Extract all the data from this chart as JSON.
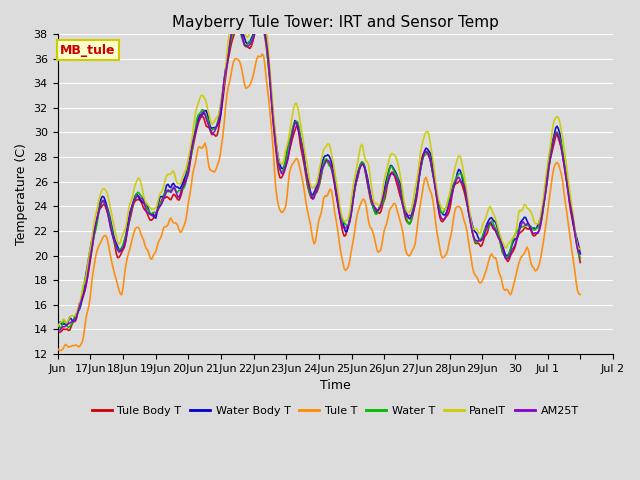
{
  "title": "Mayberry Tule Tower: IRT and Sensor Temp",
  "xlabel": "Time",
  "ylabel": "Temperature (C)",
  "ylim": [
    12,
    38
  ],
  "yticks": [
    12,
    14,
    16,
    18,
    20,
    22,
    24,
    26,
    28,
    30,
    32,
    34,
    36,
    38
  ],
  "bg_color": "#dcdcdc",
  "grid_color": "#ffffff",
  "series": [
    {
      "label": "Tule Body T",
      "color": "#cc0000",
      "lw": 1.2
    },
    {
      "label": "Water Body T",
      "color": "#0000cc",
      "lw": 1.2
    },
    {
      "label": "Tule T",
      "color": "#ff8800",
      "lw": 1.2
    },
    {
      "label": "Water T",
      "color": "#00bb00",
      "lw": 1.2
    },
    {
      "label": "PanelT",
      "color": "#cccc00",
      "lw": 1.2
    },
    {
      "label": "AM25T",
      "color": "#8800cc",
      "lw": 1.2
    }
  ],
  "annotation_text": "MB_tule",
  "annotation_color": "#cc0000",
  "annotation_bg": "#ffffcc",
  "annotation_border": "#cccc00",
  "tick_labels": [
    "Jun",
    "17Jun",
    "18Jun",
    "19Jun",
    "20Jun",
    "21Jun",
    "22Jun",
    "23Jun",
    "24Jun",
    "25Jun",
    "26Jun",
    "27Jun",
    "28Jun",
    "29Jun",
    "30",
    "Jul 1",
    "",
    "Jul 2"
  ],
  "title_fontsize": 11,
  "label_fontsize": 9,
  "tick_fontsize": 8
}
